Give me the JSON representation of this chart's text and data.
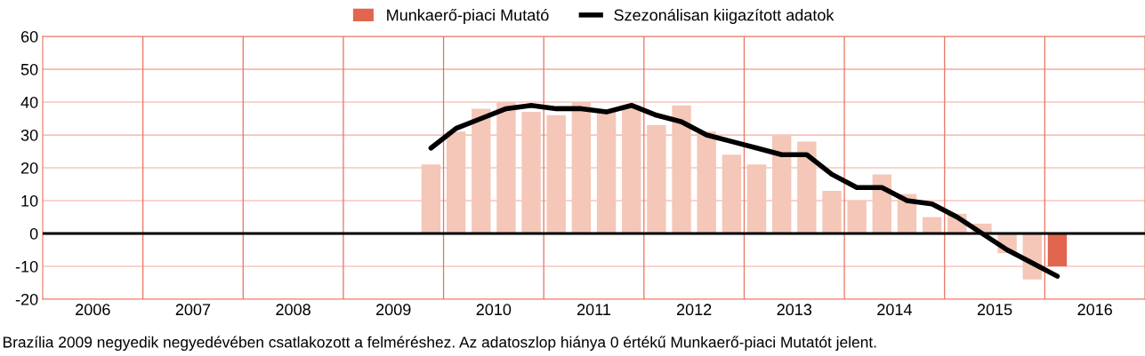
{
  "chart_data": {
    "type": "bar",
    "xlim": [
      2006,
      2017
    ],
    "ylim": [
      -20,
      60
    ],
    "yticks": [
      -20,
      -10,
      0,
      10,
      20,
      30,
      40,
      50,
      60
    ],
    "xticks": [
      {
        "value": 2007,
        "label": null
      },
      {
        "value": 2008,
        "label": null
      },
      {
        "value": 2009,
        "label": null
      },
      {
        "value": 2010,
        "label": null
      },
      {
        "value": 2011,
        "label": null
      },
      {
        "value": 2012,
        "label": null
      },
      {
        "value": 2013,
        "label": null
      },
      {
        "value": 2014,
        "label": null
      },
      {
        "value": 2015,
        "label": null
      },
      {
        "value": 2016,
        "label": null
      },
      {
        "value": 2006.5,
        "label": "2006"
      },
      {
        "value": 2007.5,
        "label": "2007"
      },
      {
        "value": 2008.5,
        "label": "2008"
      },
      {
        "value": 2009.5,
        "label": "2009"
      },
      {
        "value": 2010.5,
        "label": "2010"
      },
      {
        "value": 2011.5,
        "label": "2011"
      },
      {
        "value": 2012.5,
        "label": "2012"
      },
      {
        "value": 2013.5,
        "label": "2013"
      },
      {
        "value": 2014.5,
        "label": "2014"
      },
      {
        "value": 2015.5,
        "label": "2015"
      },
      {
        "value": 2016.5,
        "label": "2016"
      }
    ],
    "grid": true,
    "legend": "top",
    "series": [
      {
        "name": "Munkaerő-piaci Mutató",
        "color": "#e2654f",
        "x": [
          2009.875,
          2010.125,
          2010.375,
          2010.625,
          2010.875,
          2011.125,
          2011.375,
          2011.625,
          2011.875,
          2012.125,
          2012.375,
          2012.625,
          2012.875,
          2013.125,
          2013.375,
          2013.625,
          2013.875,
          2014.125,
          2014.375,
          2014.625,
          2014.875,
          2015.125,
          2015.375,
          2015.625,
          2015.875,
          2016.125
        ],
        "values": [
          21,
          31,
          38,
          40,
          37,
          36,
          40,
          37,
          39,
          33,
          39,
          31,
          24,
          21,
          30,
          28,
          13,
          10,
          18,
          12,
          5,
          6,
          3,
          -6,
          -14,
          -10
        ],
        "colors": [
          "#f4c7b8",
          "#f4c7b8",
          "#f4c7b8",
          "#f4c7b8",
          "#f4c7b8",
          "#f4c7b8",
          "#f4c7b8",
          "#f4c7b8",
          "#f4c7b8",
          "#f4c7b8",
          "#f4c7b8",
          "#f4c7b8",
          "#f4c7b8",
          "#f4c7b8",
          "#f4c7b8",
          "#f4c7b8",
          "#f4c7b8",
          "#f4c7b8",
          "#f4c7b8",
          "#f4c7b8",
          "#f4c7b8",
          "#f4c7b8",
          "#f4c7b8",
          "#f4c7b8",
          "#f4c7b8",
          "#e2654f"
        ]
      },
      {
        "type": "line",
        "name": "Szezonálisan kiigazított adatok",
        "color": "#000000",
        "x": [
          2009.875,
          2010.125,
          2010.375,
          2010.625,
          2010.875,
          2011.125,
          2011.375,
          2011.625,
          2011.875,
          2012.125,
          2012.375,
          2012.625,
          2012.875,
          2013.125,
          2013.375,
          2013.625,
          2013.875,
          2014.125,
          2014.375,
          2014.625,
          2014.875,
          2015.125,
          2015.375,
          2015.625,
          2015.875,
          2016.125
        ],
        "values": [
          26,
          32,
          35,
          38,
          39,
          38,
          38,
          37,
          39,
          36,
          34,
          30,
          28,
          26,
          24,
          24,
          18,
          14,
          14,
          10,
          9,
          5,
          0,
          -5,
          -9,
          -13
        ]
      }
    ],
    "ref_lines": [
      {
        "axis": "y",
        "value": 0,
        "color": "#000000"
      }
    ],
    "annotations": [
      "Brazília 2009 negyedik negyedévében csatlakozott a felméréshez. Az adatoszlop hiánya 0 értékű Munkaerő-piaci Mutatót jelent."
    ]
  }
}
